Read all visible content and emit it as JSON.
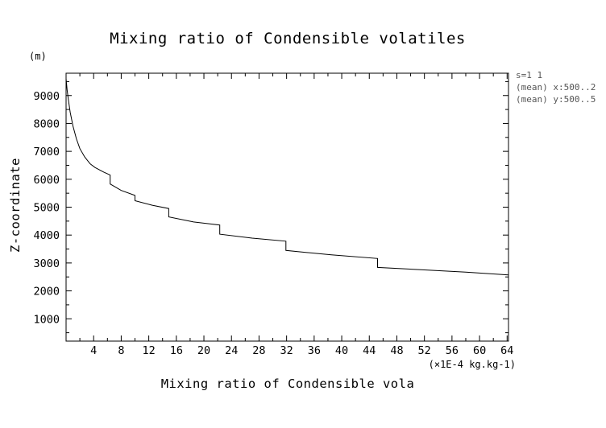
{
  "chart_data": {
    "type": "line",
    "title": "Mixing ratio of Condensible volatiles",
    "xlabel": "Mixing ratio of Condensible vola",
    "ylabel": "Z-coordinate",
    "x_unit": "(×1E-4 kg.kg-1)",
    "y_unit": "(m)",
    "xlim": [
      0,
      64.2
    ],
    "ylim": [
      200,
      9800
    ],
    "x_ticks": [
      4,
      8,
      12,
      16,
      20,
      24,
      28,
      32,
      36,
      40,
      44,
      48,
      52,
      56,
      60,
      64
    ],
    "y_ticks": [
      1000,
      2000,
      3000,
      4000,
      5000,
      6000,
      7000,
      8000,
      9000
    ],
    "annotations": [
      "s=1 1",
      "(mean) x:500..2",
      "(mean) y:500..5"
    ],
    "series": [
      {
        "name": "Condensible volatiles",
        "points": [
          [
            0.0,
            9600
          ],
          [
            0.15,
            9200
          ],
          [
            0.3,
            8900
          ],
          [
            0.6,
            8400
          ],
          [
            1.0,
            7900
          ],
          [
            1.5,
            7450
          ],
          [
            2.0,
            7100
          ],
          [
            2.7,
            6800
          ],
          [
            3.5,
            6550
          ],
          [
            4.2,
            6420
          ],
          [
            5.5,
            6250
          ],
          [
            6.4,
            6150
          ],
          [
            6.4,
            5830
          ],
          [
            8.0,
            5600
          ],
          [
            10.0,
            5420
          ],
          [
            10.0,
            5230
          ],
          [
            12.5,
            5070
          ],
          [
            14.9,
            4950
          ],
          [
            14.9,
            4650
          ],
          [
            18.5,
            4470
          ],
          [
            22.3,
            4360
          ],
          [
            22.3,
            4030
          ],
          [
            27.0,
            3890
          ],
          [
            31.9,
            3780
          ],
          [
            31.9,
            3450
          ],
          [
            38.5,
            3290
          ],
          [
            45.2,
            3160
          ],
          [
            45.2,
            2840
          ],
          [
            52.0,
            2750
          ],
          [
            58.0,
            2670
          ],
          [
            64.2,
            2570
          ]
        ]
      }
    ]
  }
}
